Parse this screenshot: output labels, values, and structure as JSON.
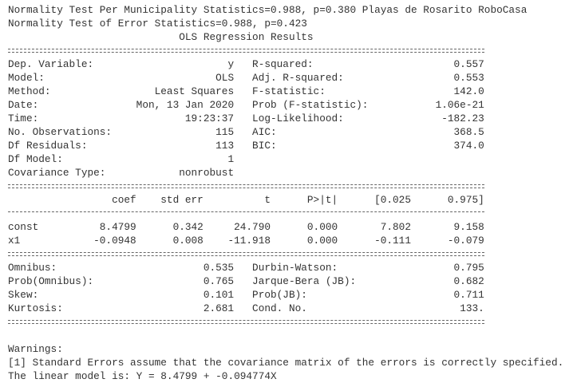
{
  "header": {
    "lines": [
      "Normality Test Per Municipality Statistics=0.988, p=0.380 Playas de Rosarito RoboCasa",
      "Normality Test of Error Statistics=0.988, p=0.423"
    ],
    "title": "OLS Regression Results"
  },
  "model_info": {
    "rows": [
      [
        "Dep. Variable:",
        "y",
        "R-squared:",
        "0.557"
      ],
      [
        "Model:",
        "OLS",
        "Adj. R-squared:",
        "0.553"
      ],
      [
        "Method:",
        "Least Squares",
        "F-statistic:",
        "142.0"
      ],
      [
        "Date:",
        "Mon, 13 Jan 2020",
        "Prob (F-statistic):",
        "1.06e-21"
      ],
      [
        "Time:",
        "19:23:37",
        "Log-Likelihood:",
        "-182.23"
      ],
      [
        "No. Observations:",
        "115",
        "AIC:",
        "368.5"
      ],
      [
        "Df Residuals:",
        "113",
        "BIC:",
        "374.0"
      ],
      [
        "Df Model:",
        "1"
      ],
      [
        "Covariance Type:",
        "nonrobust"
      ]
    ]
  },
  "coefficients": {
    "columns": [
      "coef",
      "std err",
      "t",
      "P>|t|",
      "[0.025",
      "0.975]"
    ],
    "rows": [
      [
        "const",
        "8.4799",
        "0.342",
        "24.790",
        "0.000",
        "7.802",
        "9.158"
      ],
      [
        "x1",
        "-0.0948",
        "0.008",
        "-11.918",
        "0.000",
        "-0.111",
        "-0.079"
      ]
    ]
  },
  "diagnostics": {
    "rows": [
      [
        "Omnibus:",
        "0.535",
        "Durbin-Watson:",
        "0.795"
      ],
      [
        "Prob(Omnibus):",
        "0.765",
        "Jarque-Bera (JB):",
        "0.682"
      ],
      [
        "Skew:",
        "0.101",
        "Prob(JB):",
        "0.711"
      ],
      [
        "Kurtosis:",
        "2.681",
        "Cond. No.",
        "133."
      ]
    ]
  },
  "warnings": {
    "title": "Warnings:",
    "items": [
      "[1] Standard Errors assume that the covariance matrix of the errors is correctly specified."
    ]
  },
  "footer": "The linear model is: Y = 8.4799 + -0.094774X"
}
